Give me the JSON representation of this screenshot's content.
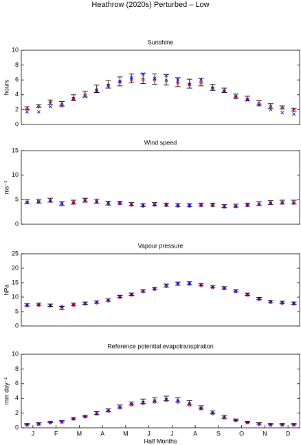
{
  "title": "Heathrow (2020s) Perturbed – Low",
  "chart_data": [
    {
      "type": "errorbar",
      "title": "Sunshine",
      "ylabel": "hours",
      "ylim": [
        0,
        10
      ],
      "yticks": [
        0,
        2,
        4,
        6,
        8,
        10
      ],
      "xlim": [
        0.5,
        24.5
      ],
      "series": [
        {
          "color": "#000000",
          "values": [
            2.2,
            2.5,
            3.0,
            2.8,
            3.6,
            4.1,
            4.8,
            5.4,
            5.8,
            6.2,
            6.2,
            6.1,
            6.0,
            5.7,
            5.5,
            5.7,
            5.0,
            4.6,
            3.8,
            3.5,
            2.9,
            2.5,
            2.3,
            2.0
          ],
          "errors": [
            0.2,
            0.2,
            0.3,
            0.3,
            0.4,
            0.4,
            0.5,
            0.5,
            0.6,
            0.6,
            0.7,
            0.7,
            0.7,
            0.6,
            0.6,
            0.5,
            0.4,
            0.3,
            0.3,
            0.3,
            0.3,
            0.3,
            0.2,
            0.2
          ]
        },
        {
          "color": "#ff0000",
          "marker": "o",
          "values": [
            2.1,
            2.4,
            3.0,
            2.7,
            3.5,
            4.0,
            4.6,
            5.3,
            5.7,
            6.0,
            6.0,
            6.0,
            5.9,
            5.6,
            5.4,
            5.6,
            4.9,
            4.5,
            3.7,
            3.4,
            2.8,
            2.4,
            2.2,
            1.9
          ]
        },
        {
          "color": "#0000ff",
          "marker": "x",
          "values": [
            1.7,
            1.7,
            2.4,
            2.5,
            3.5,
            3.8,
            4.5,
            5.2,
            5.8,
            6.3,
            6.8,
            6.2,
            6.6,
            6.0,
            5.4,
            6.0,
            4.9,
            4.5,
            3.8,
            3.3,
            2.6,
            2.0,
            1.6,
            1.4
          ]
        }
      ]
    },
    {
      "type": "errorbar",
      "title": "Wind speed",
      "ylabel": "ms⁻¹",
      "ylim": [
        0,
        15
      ],
      "yticks": [
        0,
        5,
        10,
        15
      ],
      "xlim": [
        0.5,
        24.5
      ],
      "series": [
        {
          "color": "#000000",
          "values": [
            4.6,
            4.7,
            4.9,
            4.2,
            4.5,
            4.9,
            4.7,
            4.3,
            4.4,
            4.1,
            3.9,
            4.1,
            4.0,
            3.9,
            3.9,
            4.0,
            4.0,
            3.7,
            3.8,
            4.0,
            4.2,
            4.4,
            4.5,
            4.5
          ],
          "errors": [
            0.4,
            0.4,
            0.4,
            0.4,
            0.4,
            0.4,
            0.4,
            0.4,
            0.3,
            0.3,
            0.3,
            0.3,
            0.3,
            0.3,
            0.3,
            0.3,
            0.3,
            0.3,
            0.3,
            0.3,
            0.4,
            0.4,
            0.4,
            0.4
          ]
        },
        {
          "color": "#ff0000",
          "marker": "o",
          "values": [
            4.4,
            4.5,
            4.7,
            4.0,
            4.3,
            4.7,
            4.5,
            4.1,
            4.2,
            3.9,
            3.7,
            3.9,
            3.8,
            3.7,
            3.7,
            3.8,
            3.8,
            3.5,
            3.6,
            3.8,
            4.0,
            4.2,
            4.3,
            4.3
          ]
        },
        {
          "color": "#0000ff",
          "marker": "x",
          "values": [
            4.5,
            4.6,
            4.8,
            4.2,
            4.4,
            4.9,
            4.6,
            4.3,
            4.3,
            4.0,
            3.9,
            4.0,
            4.0,
            3.9,
            3.8,
            3.9,
            3.9,
            3.6,
            3.7,
            3.9,
            4.1,
            4.3,
            4.4,
            4.4
          ]
        }
      ]
    },
    {
      "type": "errorbar",
      "title": "Vapour pressure",
      "ylabel": "hPa",
      "ylim": [
        0,
        25
      ],
      "yticks": [
        0,
        5,
        10,
        15,
        20,
        25
      ],
      "xlim": [
        0.5,
        24.5
      ],
      "series": [
        {
          "color": "#000000",
          "values": [
            7.3,
            7.5,
            7.2,
            6.3,
            7.5,
            7.9,
            8.3,
            9.0,
            10.2,
            11.0,
            12.2,
            13.0,
            14.0,
            14.7,
            14.8,
            14.3,
            13.6,
            13.2,
            12.2,
            11.0,
            9.5,
            8.5,
            8.2,
            7.9
          ],
          "errors": [
            0.4,
            0.4,
            0.4,
            0.5,
            0.4,
            0.4,
            0.4,
            0.4,
            0.4,
            0.4,
            0.4,
            0.4,
            0.5,
            0.5,
            0.5,
            0.4,
            0.4,
            0.4,
            0.4,
            0.4,
            0.4,
            0.4,
            0.4,
            0.4
          ]
        },
        {
          "color": "#ff0000",
          "marker": "o",
          "values": [
            7.0,
            7.2,
            6.9,
            6.0,
            7.2,
            7.6,
            8.0,
            8.7,
            9.9,
            10.7,
            11.9,
            12.7,
            13.7,
            14.4,
            14.5,
            14.0,
            13.3,
            12.9,
            11.9,
            10.7,
            9.2,
            8.2,
            7.9,
            7.6
          ]
        },
        {
          "color": "#0000ff",
          "marker": "x",
          "values": [
            7.3,
            7.5,
            7.2,
            6.8,
            7.5,
            7.8,
            8.2,
            9.0,
            10.3,
            11.0,
            12.0,
            13.0,
            14.1,
            14.8,
            14.8,
            14.3,
            13.5,
            13.2,
            12.0,
            10.8,
            9.4,
            8.4,
            8.1,
            7.9
          ]
        }
      ]
    },
    {
      "type": "errorbar",
      "title": "Reference potential evapotranspiration",
      "ylabel": "mm day⁻¹",
      "xlabel": "Half Months",
      "ylim": [
        0,
        10
      ],
      "yticks": [
        0,
        2,
        4,
        6,
        8,
        10
      ],
      "xlim": [
        0.5,
        24.5
      ],
      "xticks": [
        {
          "value": 1.5,
          "label": "J"
        },
        {
          "value": 3.5,
          "label": "F"
        },
        {
          "value": 5.5,
          "label": "M"
        },
        {
          "value": 7.5,
          "label": "A"
        },
        {
          "value": 9.5,
          "label": "M"
        },
        {
          "value": 11.5,
          "label": "J"
        },
        {
          "value": 13.5,
          "label": "J"
        },
        {
          "value": 15.5,
          "label": "A"
        },
        {
          "value": 17.5,
          "label": "S"
        },
        {
          "value": 19.5,
          "label": "O"
        },
        {
          "value": 21.5,
          "label": "N"
        },
        {
          "value": 23.5,
          "label": "D"
        }
      ],
      "series": [
        {
          "color": "#000000",
          "values": [
            0.5,
            0.6,
            0.8,
            0.9,
            1.3,
            1.6,
            2.0,
            2.4,
            2.9,
            3.3,
            3.6,
            3.8,
            4.0,
            3.8,
            3.4,
            2.8,
            2.1,
            1.5,
            1.1,
            0.8,
            0.6,
            0.5,
            0.5,
            0.5
          ],
          "errors": [
            0.1,
            0.1,
            0.1,
            0.1,
            0.1,
            0.1,
            0.2,
            0.2,
            0.2,
            0.2,
            0.3,
            0.3,
            0.3,
            0.3,
            0.3,
            0.2,
            0.2,
            0.2,
            0.1,
            0.1,
            0.1,
            0.1,
            0.1,
            0.1
          ]
        },
        {
          "color": "#ff0000",
          "marker": "o",
          "values": [
            0.4,
            0.5,
            0.7,
            0.8,
            1.2,
            1.5,
            1.9,
            2.3,
            2.7,
            3.1,
            3.3,
            3.5,
            3.7,
            3.5,
            3.1,
            2.6,
            1.9,
            1.3,
            1.0,
            0.7,
            0.5,
            0.4,
            0.4,
            0.4
          ]
        },
        {
          "color": "#0000ff",
          "marker": "x",
          "values": [
            0.4,
            0.5,
            0.7,
            0.8,
            1.2,
            1.5,
            1.9,
            2.3,
            2.8,
            3.2,
            3.4,
            3.6,
            3.8,
            3.6,
            3.2,
            2.6,
            2.0,
            1.4,
            1.0,
            0.7,
            0.5,
            0.4,
            0.4,
            0.4
          ]
        }
      ]
    }
  ]
}
